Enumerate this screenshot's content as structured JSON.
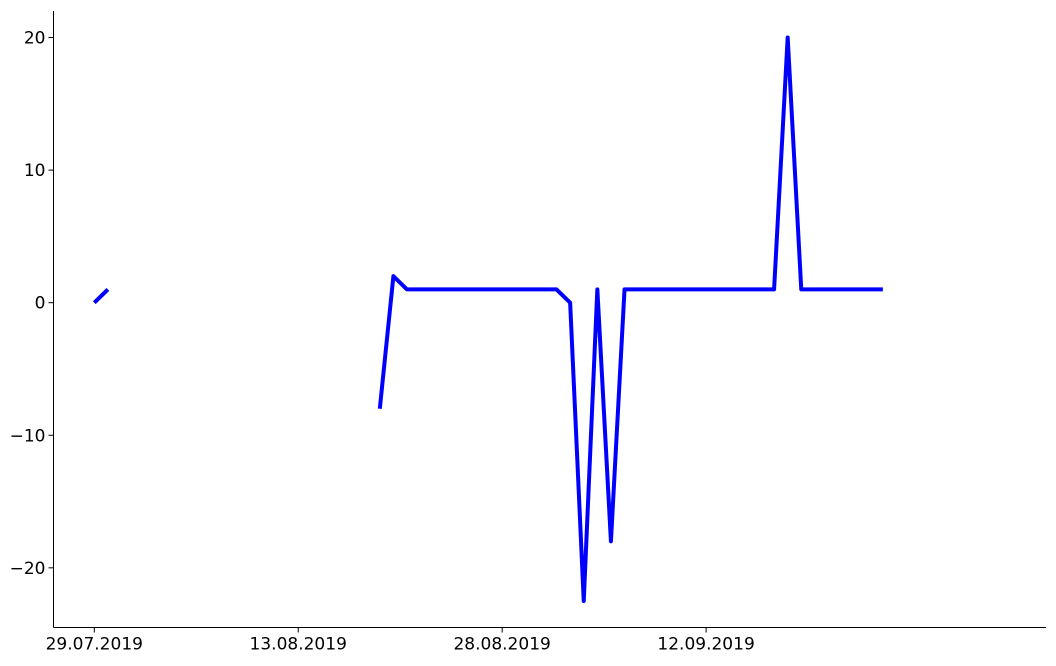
{
  "chart_data": {
    "type": "line",
    "title": "",
    "xlabel": "",
    "ylabel": "",
    "x_tick_labels": [
      "29.07.2019",
      "13.08.2019",
      "28.08.2019",
      "12.09.2019"
    ],
    "y_tick_labels": [
      "20",
      "10",
      "0",
      "−10",
      "−20"
    ],
    "ylim": [
      -24.5,
      22
    ],
    "xlim": [
      "2019-07-26",
      "2019-10-07"
    ],
    "grid": false,
    "legend": "none",
    "series": [
      {
        "color": "#0000ff",
        "segments": [
          {
            "x": [
              "2019-07-29",
              "2019-07-30"
            ],
            "y": [
              0,
              1
            ]
          },
          {
            "x": [
              "2019-08-19",
              "2019-08-20",
              "2019-08-21",
              "2019-08-22",
              "2019-08-23",
              "2019-08-24",
              "2019-08-25",
              "2019-08-26",
              "2019-08-27",
              "2019-08-28",
              "2019-08-29",
              "2019-08-30",
              "2019-08-31",
              "2019-09-01",
              "2019-09-02",
              "2019-09-03",
              "2019-09-04",
              "2019-09-05",
              "2019-09-06",
              "2019-09-07",
              "2019-09-08",
              "2019-09-09",
              "2019-09-10",
              "2019-09-11",
              "2019-09-12",
              "2019-09-13",
              "2019-09-14",
              "2019-09-15",
              "2019-09-16",
              "2019-09-17",
              "2019-09-18",
              "2019-09-19",
              "2019-09-20",
              "2019-09-21",
              "2019-09-22",
              "2019-09-23",
              "2019-09-24",
              "2019-09-25"
            ],
            "y": [
              -8,
              2,
              1,
              1,
              1,
              1,
              1,
              1,
              1,
              1,
              1,
              1,
              1,
              1,
              0,
              -22.5,
              1,
              -18,
              1,
              1,
              1,
              1,
              1,
              1,
              1,
              1,
              1,
              1,
              1,
              1,
              20,
              1,
              1,
              1,
              1,
              1,
              1,
              1
            ]
          }
        ]
      }
    ]
  }
}
